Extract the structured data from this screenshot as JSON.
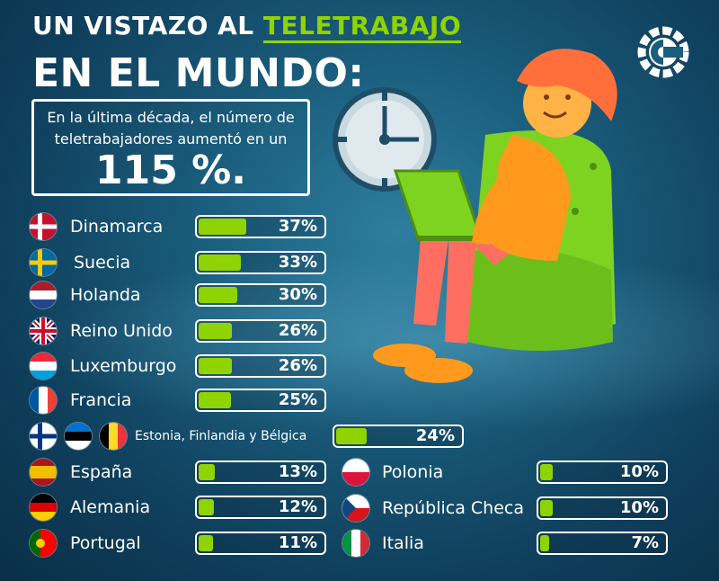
{
  "title": {
    "line1_prefix": "UN VISTAZO AL ",
    "line1_highlight": "TELETRABAJO",
    "line2": "EN EL MUNDO:"
  },
  "info": {
    "text_line1": "En la última década, el número de",
    "text_line2": "teletrabajadores aumentó en un",
    "value": "115 %."
  },
  "colors": {
    "accent": "#8fd400",
    "text": "#ffffff",
    "background": "#1a5d7c"
  },
  "chart_data": {
    "type": "bar",
    "categories": [
      "Dinamarca",
      "Suecia",
      "Holanda",
      "Reino Unido",
      "Luxemburgo",
      "Francia",
      "Estonia, Finlandia y Bélgica",
      "España",
      "Alemania",
      "Portugal",
      "Polonia",
      "República Checa",
      "Italia"
    ],
    "values": [
      37,
      33,
      30,
      26,
      26,
      25,
      24,
      13,
      12,
      11,
      10,
      10,
      7
    ],
    "labels": [
      "37%",
      "33%",
      "30%",
      "26%",
      "26%",
      "25%",
      "24%",
      "13%",
      "12%",
      "11%",
      "10%",
      "10%",
      "7%"
    ],
    "unit": "%"
  }
}
